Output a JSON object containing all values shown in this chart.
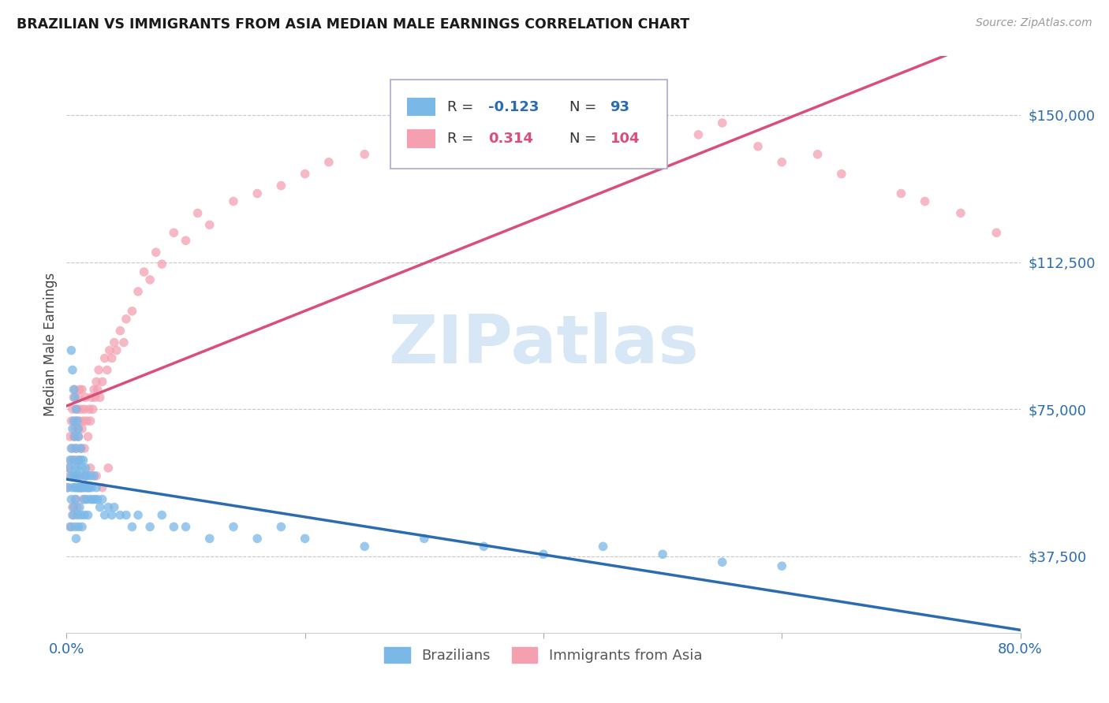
{
  "title": "BRAZILIAN VS IMMIGRANTS FROM ASIA MEDIAN MALE EARNINGS CORRELATION CHART",
  "source": "Source: ZipAtlas.com",
  "ylabel": "Median Male Earnings",
  "yticks": [
    37500,
    75000,
    112500,
    150000
  ],
  "ytick_labels": [
    "$37,500",
    "$75,000",
    "$112,500",
    "$150,000"
  ],
  "xlim": [
    0.0,
    0.8
  ],
  "ylim": [
    18000,
    165000
  ],
  "brazil_color": "#7ab8e8",
  "asia_color": "#f4a0b0",
  "brazil_line_color": "#2b6cb0",
  "asia_line_color": "#d94f7a",
  "legend_label_brazil": "Brazilians",
  "legend_label_asia": "Immigrants from Asia",
  "watermark_text": "ZIPatlas",
  "watermark_color": "#b8d4ee",
  "brazil_scatter_x": [
    0.001,
    0.002,
    0.003,
    0.003,
    0.004,
    0.004,
    0.004,
    0.005,
    0.005,
    0.005,
    0.006,
    0.006,
    0.006,
    0.006,
    0.007,
    0.007,
    0.007,
    0.007,
    0.008,
    0.008,
    0.008,
    0.008,
    0.009,
    0.009,
    0.009,
    0.01,
    0.01,
    0.01,
    0.01,
    0.011,
    0.011,
    0.011,
    0.012,
    0.012,
    0.012,
    0.013,
    0.013,
    0.013,
    0.014,
    0.014,
    0.015,
    0.015,
    0.015,
    0.016,
    0.016,
    0.017,
    0.017,
    0.018,
    0.018,
    0.019,
    0.02,
    0.02,
    0.021,
    0.022,
    0.023,
    0.024,
    0.025,
    0.026,
    0.028,
    0.03,
    0.032,
    0.035,
    0.038,
    0.04,
    0.045,
    0.05,
    0.055,
    0.06,
    0.07,
    0.08,
    0.09,
    0.1,
    0.12,
    0.14,
    0.16,
    0.18,
    0.2,
    0.25,
    0.3,
    0.35,
    0.4,
    0.45,
    0.5,
    0.55,
    0.6,
    0.004,
    0.005,
    0.006,
    0.007,
    0.008,
    0.009,
    0.01,
    0.012
  ],
  "brazil_scatter_y": [
    55000,
    60000,
    62000,
    45000,
    58000,
    52000,
    65000,
    55000,
    70000,
    48000,
    58000,
    62000,
    50000,
    72000,
    55000,
    60000,
    45000,
    68000,
    58000,
    52000,
    65000,
    42000,
    55000,
    60000,
    48000,
    55000,
    62000,
    45000,
    70000,
    55000,
    58000,
    50000,
    55000,
    62000,
    48000,
    55000,
    60000,
    45000,
    55000,
    62000,
    52000,
    58000,
    48000,
    55000,
    60000,
    52000,
    58000,
    55000,
    48000,
    55000,
    52000,
    58000,
    55000,
    52000,
    58000,
    52000,
    55000,
    52000,
    50000,
    52000,
    48000,
    50000,
    48000,
    50000,
    48000,
    48000,
    45000,
    48000,
    45000,
    48000,
    45000,
    45000,
    42000,
    45000,
    42000,
    45000,
    42000,
    40000,
    42000,
    40000,
    38000,
    40000,
    38000,
    36000,
    35000,
    90000,
    85000,
    80000,
    78000,
    75000,
    72000,
    68000,
    65000
  ],
  "asia_scatter_x": [
    0.001,
    0.002,
    0.003,
    0.003,
    0.004,
    0.004,
    0.005,
    0.005,
    0.006,
    0.006,
    0.007,
    0.007,
    0.007,
    0.008,
    0.008,
    0.008,
    0.009,
    0.009,
    0.01,
    0.01,
    0.01,
    0.011,
    0.011,
    0.012,
    0.012,
    0.013,
    0.013,
    0.014,
    0.015,
    0.015,
    0.016,
    0.017,
    0.018,
    0.019,
    0.02,
    0.021,
    0.022,
    0.023,
    0.024,
    0.025,
    0.026,
    0.027,
    0.028,
    0.03,
    0.032,
    0.034,
    0.036,
    0.038,
    0.04,
    0.042,
    0.045,
    0.048,
    0.05,
    0.055,
    0.06,
    0.065,
    0.07,
    0.075,
    0.08,
    0.09,
    0.1,
    0.11,
    0.12,
    0.14,
    0.16,
    0.18,
    0.2,
    0.22,
    0.25,
    0.28,
    0.3,
    0.32,
    0.35,
    0.38,
    0.4,
    0.43,
    0.45,
    0.48,
    0.5,
    0.53,
    0.55,
    0.58,
    0.6,
    0.63,
    0.65,
    0.7,
    0.72,
    0.75,
    0.78,
    0.004,
    0.005,
    0.006,
    0.007,
    0.008,
    0.009,
    0.01,
    0.012,
    0.014,
    0.016,
    0.018,
    0.02,
    0.025,
    0.03,
    0.035
  ],
  "asia_scatter_y": [
    55000,
    60000,
    58000,
    68000,
    62000,
    72000,
    65000,
    75000,
    68000,
    78000,
    70000,
    62000,
    80000,
    65000,
    72000,
    58000,
    70000,
    75000,
    68000,
    78000,
    62000,
    72000,
    80000,
    65000,
    75000,
    70000,
    80000,
    72000,
    75000,
    65000,
    78000,
    72000,
    68000,
    75000,
    72000,
    78000,
    75000,
    80000,
    78000,
    82000,
    80000,
    85000,
    78000,
    82000,
    88000,
    85000,
    90000,
    88000,
    92000,
    90000,
    95000,
    92000,
    98000,
    100000,
    105000,
    110000,
    108000,
    115000,
    112000,
    120000,
    118000,
    125000,
    122000,
    128000,
    130000,
    132000,
    135000,
    138000,
    140000,
    142000,
    138000,
    140000,
    145000,
    142000,
    148000,
    145000,
    148000,
    150000,
    148000,
    145000,
    148000,
    142000,
    138000,
    140000,
    135000,
    130000,
    128000,
    125000,
    120000,
    45000,
    50000,
    48000,
    52000,
    55000,
    50000,
    58000,
    55000,
    52000,
    58000,
    55000,
    60000,
    58000,
    55000,
    60000
  ]
}
